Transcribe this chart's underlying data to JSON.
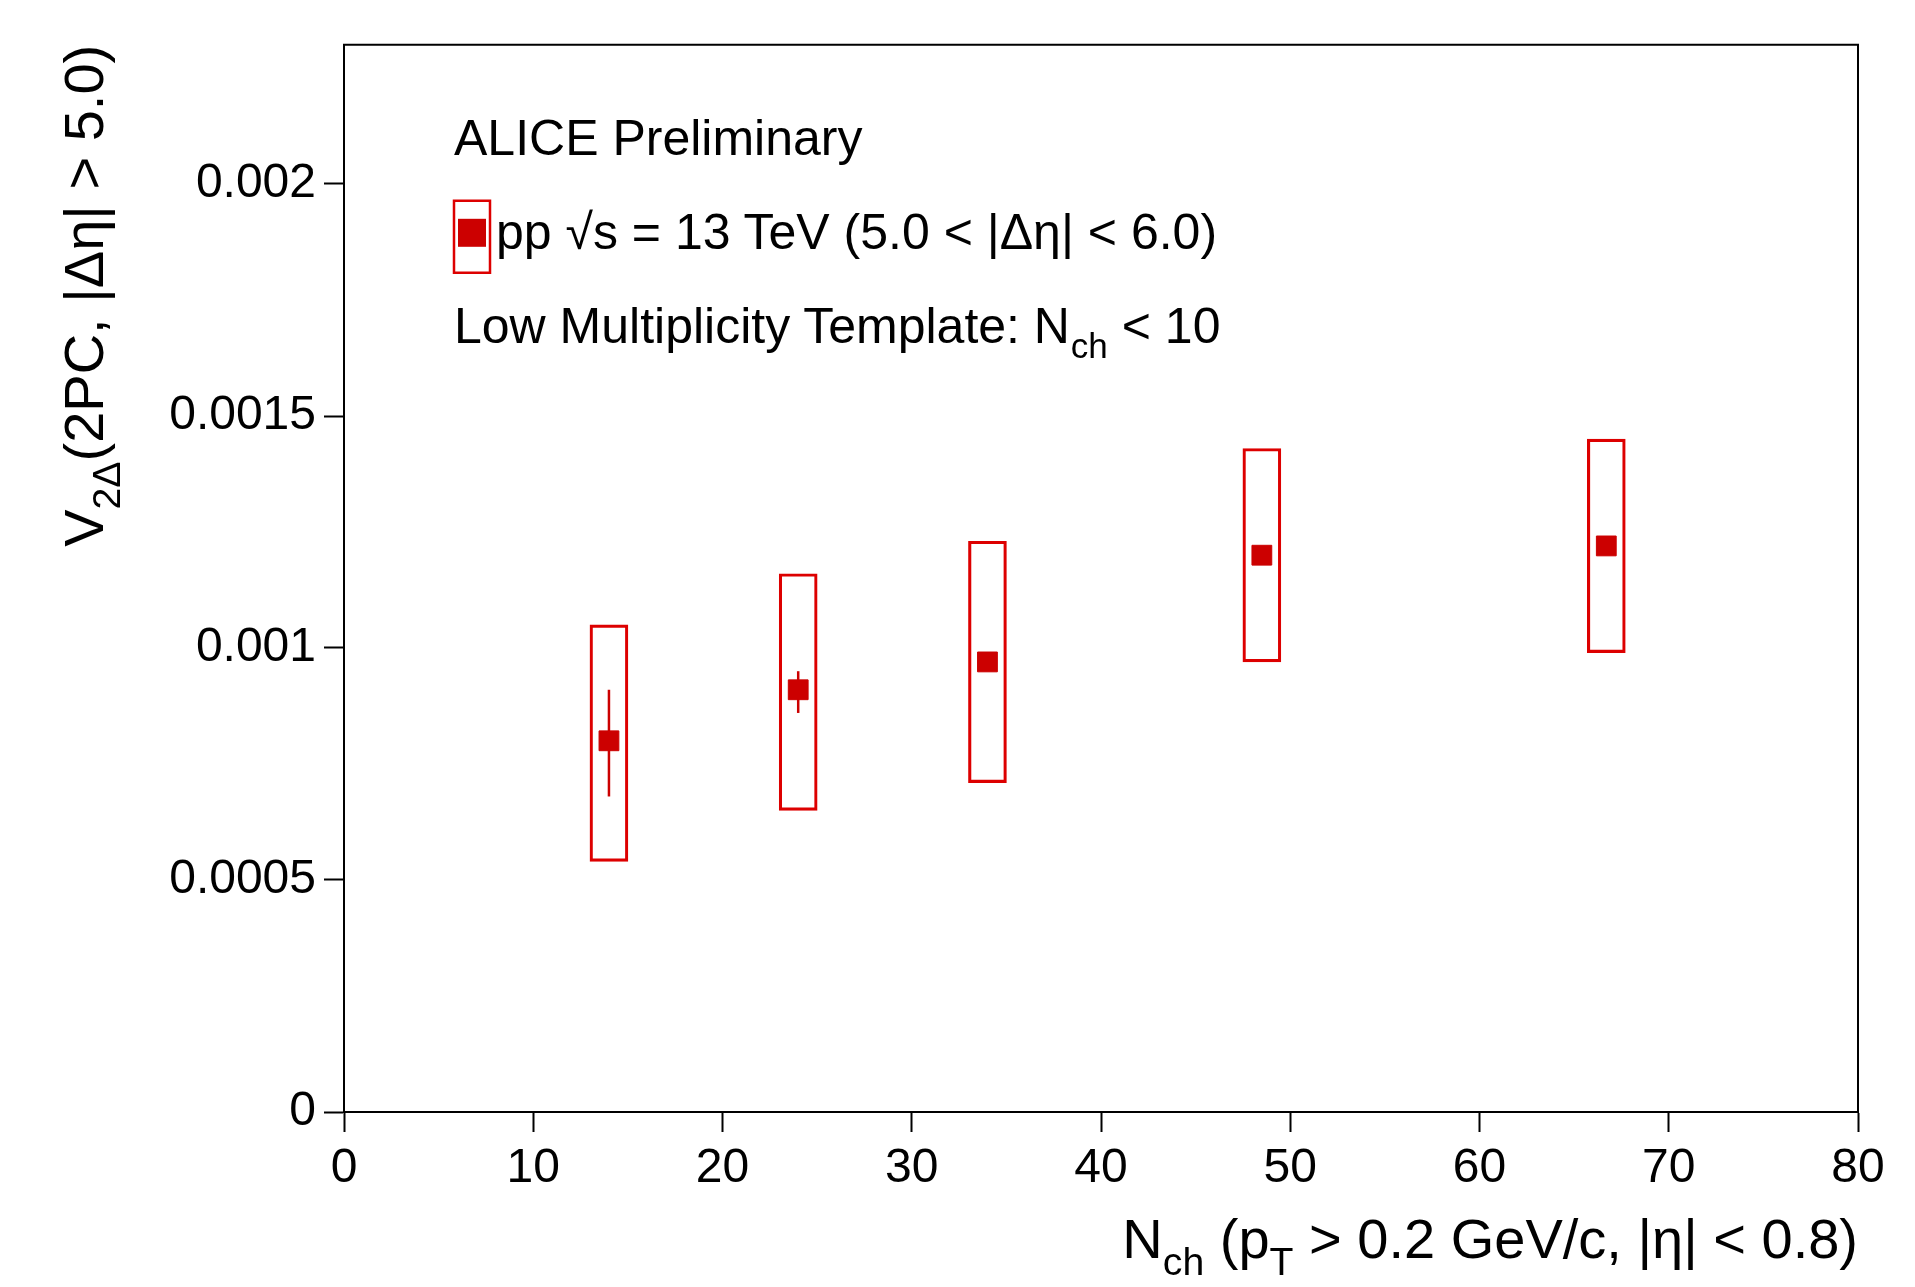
{
  "chart_data": {
    "type": "scatter",
    "xlabel": "N$_{ch}$ (p$_{T}$ > 0.2 GeV/c, |η| < 0.8)",
    "ylabel": "V$_{2Δ}$(2PC, |Δη| > 5.0)",
    "annotations": [
      "ALICE Preliminary",
      "Low Multiplicity Template: N$_{ch}$ < 10"
    ],
    "xlim": [
      0,
      80
    ],
    "xticks": [
      0,
      10,
      20,
      30,
      40,
      50,
      60,
      70,
      80
    ],
    "ylim": [
      0,
      0.0023
    ],
    "yticks": [
      0,
      0.0005,
      0.001,
      0.0015,
      0.002
    ],
    "grid": false,
    "legend": "top left",
    "marker": "square",
    "series": [
      {
        "type": "bar",
        "color": "#dd0000",
        "x": [
          14,
          24,
          34,
          48.5,
          66.7
        ],
        "base": [
          0.00054,
          0.00065,
          0.00071,
          0.00097,
          0.00099
        ],
        "values": [
          0.00051,
          0.00051,
          0.00052,
          0.00046,
          0.00046
        ]
      },
      {
        "name": "pp √s = 13 TeV (5.0 < |Δη| < 6.0)",
        "color": "#cc0000",
        "x": [
          14,
          24,
          34,
          48.5,
          66.7
        ],
        "values": [
          0.0008,
          0.00091,
          0.00097,
          0.0012,
          0.00122
        ],
        "errors": [
          [
            0.00068,
            0.00091
          ],
          [
            0.00086,
            0.00095
          ],
          null,
          null,
          null
        ]
      }
    ]
  }
}
